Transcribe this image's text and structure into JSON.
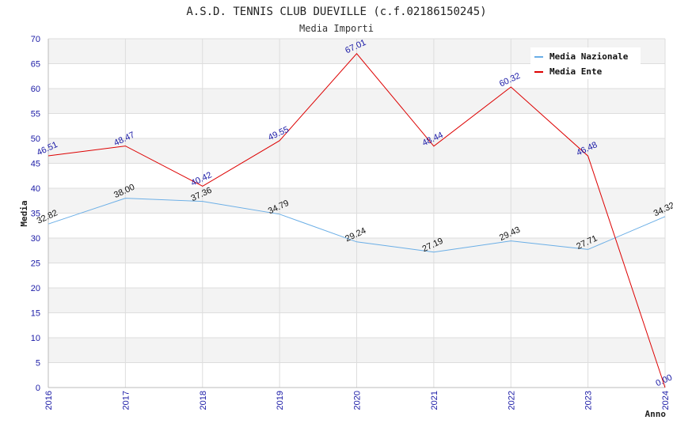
{
  "chart_data": {
    "type": "line",
    "title": "A.S.D. TENNIS CLUB DUEVILLE (c.f.02186150245)",
    "subtitle": "Media Importi",
    "xlabel": "Anno",
    "ylabel": "Media",
    "x": [
      "2016",
      "2017",
      "2018",
      "2019",
      "2020",
      "2021",
      "2022",
      "2023",
      "2024"
    ],
    "ylim": [
      0,
      70
    ],
    "yticks": [
      0,
      5,
      10,
      15,
      20,
      25,
      30,
      35,
      40,
      45,
      50,
      55,
      60,
      65,
      70
    ],
    "grid": "horizontal alternating bands",
    "legend_position": "top-right",
    "series": [
      {
        "name": "Media Nazionale",
        "color": "#6aaee6",
        "label_color": "#111111",
        "values": [
          32.82,
          38.0,
          37.36,
          34.79,
          29.24,
          27.19,
          29.43,
          27.71,
          34.32
        ],
        "labels": [
          "32.82",
          "38.00",
          "37.36",
          "34.79",
          "29.24",
          "27.19",
          "29.43",
          "27.71",
          "34.32"
        ]
      },
      {
        "name": "Media Ente",
        "color": "#dd0000",
        "label_color": "#1a1aa6",
        "values": [
          46.51,
          48.47,
          40.42,
          49.55,
          67.01,
          48.44,
          60.32,
          46.48,
          0.0
        ],
        "labels": [
          "46.51",
          "48.47",
          "40.42",
          "49.55",
          "67.01",
          "48.44",
          "60.32",
          "46.48",
          "0.00"
        ]
      }
    ]
  }
}
